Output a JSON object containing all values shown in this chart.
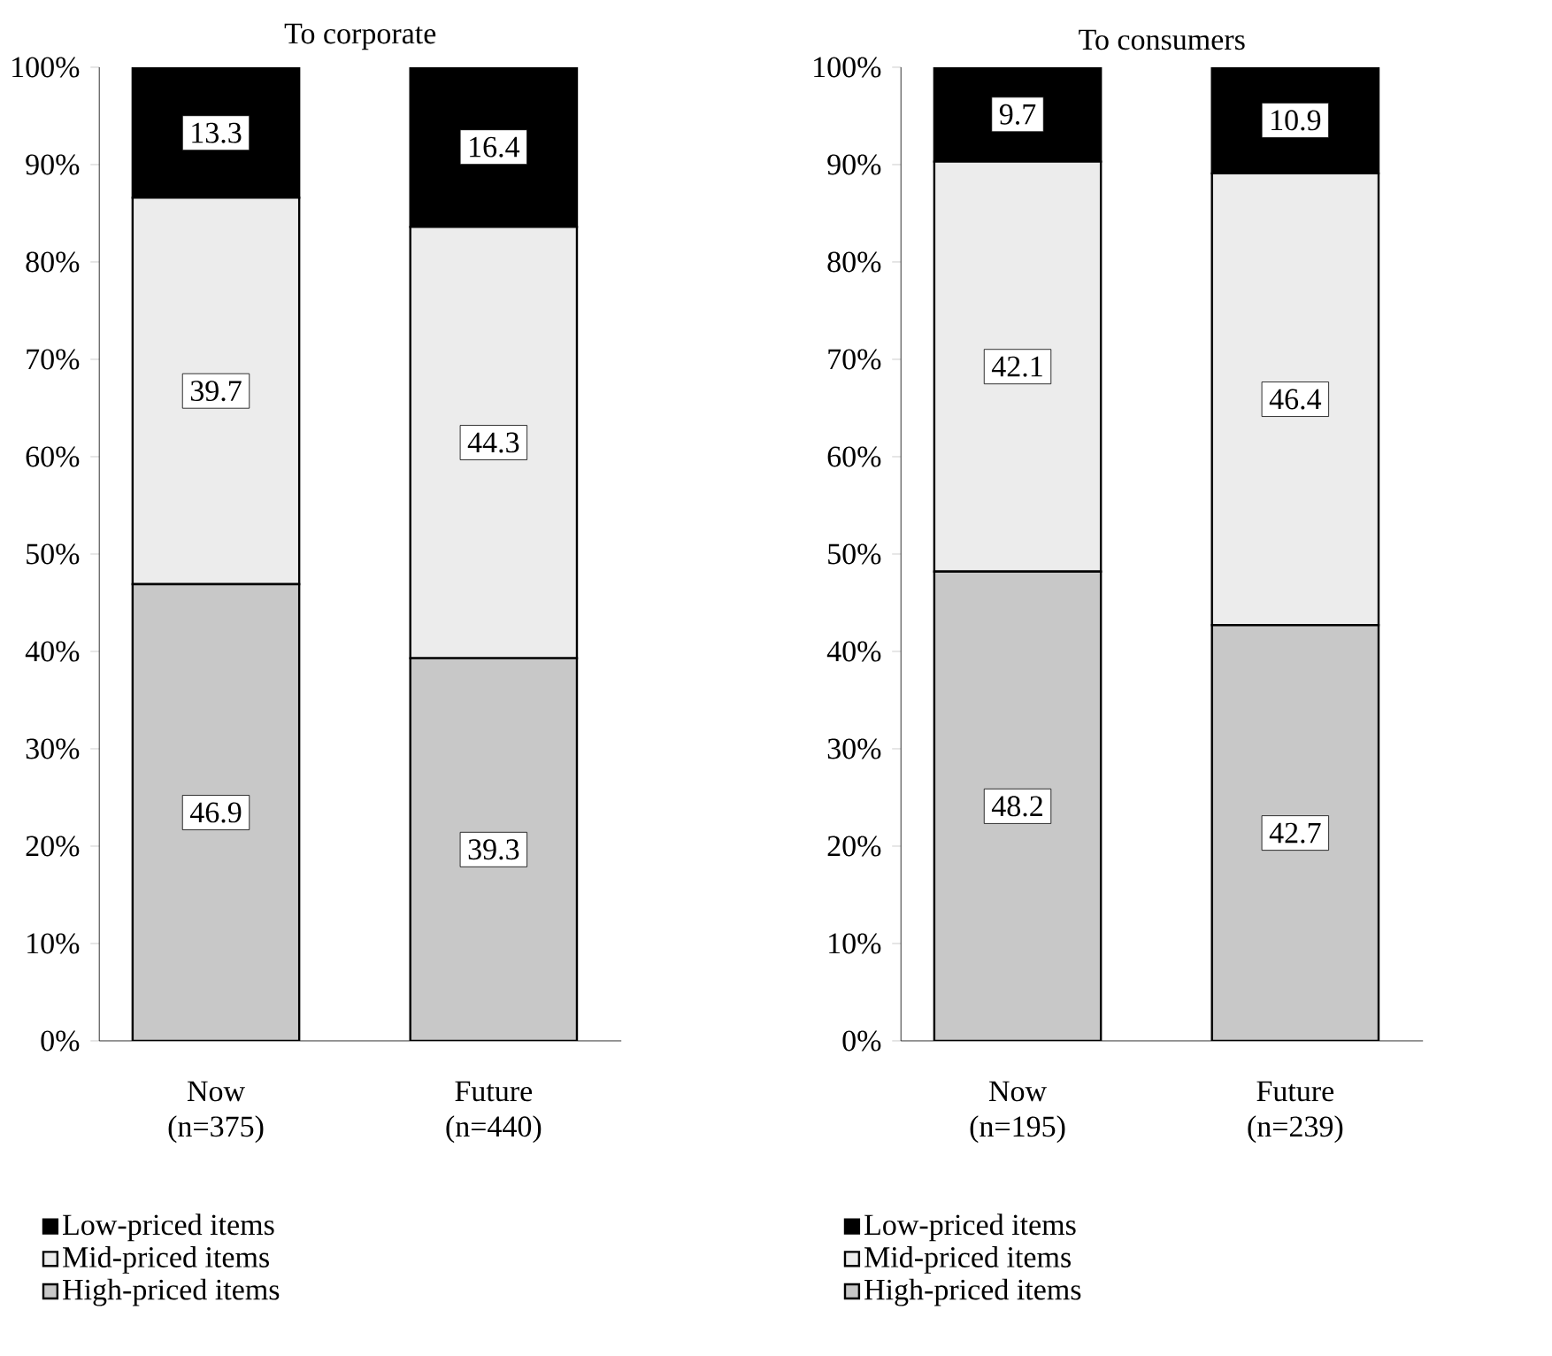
{
  "chart_data": [
    {
      "type": "bar",
      "stacked": true,
      "title": "To corporate",
      "categories": [
        "Now (n=375)",
        "Future (n=440)"
      ],
      "series": [
        {
          "name": "High-priced items",
          "color": "#c8c8c8",
          "values": [
            46.9,
            39.3
          ]
        },
        {
          "name": "Mid-priced items",
          "color": "#ececec",
          "values": [
            39.7,
            44.3
          ]
        },
        {
          "name": "Low-priced items",
          "color": "#000000",
          "values": [
            13.3,
            16.4
          ]
        }
      ],
      "ylim": [
        0,
        100
      ],
      "yticks": [
        {
          "value": 0,
          "label": "0%"
        },
        {
          "value": 10,
          "label": "10%"
        },
        {
          "value": 20,
          "label": "20%"
        },
        {
          "value": 30,
          "label": "30%"
        },
        {
          "value": 40,
          "label": "40%"
        },
        {
          "value": 50,
          "label": "50%"
        },
        {
          "value": 60,
          "label": "60%"
        },
        {
          "value": 70,
          "label": "70%"
        },
        {
          "value": 80,
          "label": "80%"
        },
        {
          "value": 90,
          "label": "90%"
        },
        {
          "value": 100,
          "label": "100%"
        }
      ],
      "data_labels": true,
      "legend": "bottom"
    },
    {
      "type": "bar",
      "stacked": true,
      "title": "To consumers",
      "categories": [
        "Now (n=195)",
        "Future (n=239)"
      ],
      "series": [
        {
          "name": "High-priced items",
          "color": "#c8c8c8",
          "values": [
            48.2,
            42.7
          ]
        },
        {
          "name": "Mid-priced items",
          "color": "#ececec",
          "values": [
            42.1,
            46.4
          ]
        },
        {
          "name": "Low-priced items",
          "color": "#000000",
          "values": [
            9.7,
            10.9
          ]
        }
      ],
      "ylim": [
        0,
        100
      ],
      "yticks": [
        {
          "value": 0,
          "label": "0%"
        },
        {
          "value": 10,
          "label": "10%"
        },
        {
          "value": 20,
          "label": "20%"
        },
        {
          "value": 30,
          "label": "30%"
        },
        {
          "value": 40,
          "label": "40%"
        },
        {
          "value": 50,
          "label": "50%"
        },
        {
          "value": 60,
          "label": "60%"
        },
        {
          "value": 70,
          "label": "70%"
        },
        {
          "value": 80,
          "label": "80%"
        },
        {
          "value": 90,
          "label": "90%"
        },
        {
          "value": 100,
          "label": "100%"
        }
      ],
      "data_labels": true,
      "legend": "bottom"
    }
  ]
}
